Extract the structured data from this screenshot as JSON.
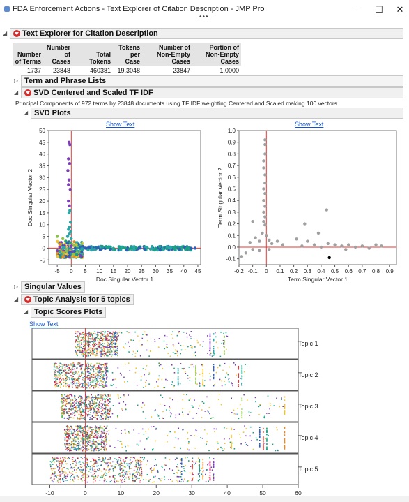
{
  "window": {
    "title": "FDA Enforcement Actions - Text Explorer of Citation Description - JMP Pro",
    "overflow_dots": "•••",
    "minimize": "—",
    "maximize": "☐",
    "close": "✕"
  },
  "text_explorer": {
    "header": "Text Explorer for Citation Description",
    "summary_headers": [
      "Number of Terms",
      "Number of Cases",
      "Total Tokens",
      "Tokens per Case",
      "Number of Non-Empty Cases",
      "Portion of Non-Empty Cases"
    ],
    "summary_values": [
      "1737",
      "23848",
      "460381",
      "19.3048",
      "23847",
      "1.0000"
    ]
  },
  "term_phrase": {
    "header": "Term and Phrase Lists"
  },
  "svd": {
    "header": "SVD Centered and Scaled TF IDF",
    "note": "Principal Components of 972 terms by 23848 documents using TF IDF weighting Centered and Scaled making 100 vectors",
    "plots_header": "SVD Plots",
    "show_text": "Show Text"
  },
  "singular_values": {
    "header": "Singular Values"
  },
  "topic_analysis": {
    "header": "Topic Analysis for 5 topics",
    "scores_header": "Topic Scores Plots",
    "show_text": "Show Text",
    "topics": [
      "Topic 1",
      "Topic 2",
      "Topic 3",
      "Topic 4",
      "Topic 5"
    ],
    "x_ticks": [
      "-10",
      "0",
      "10",
      "20",
      "30",
      "40",
      "50",
      "60"
    ]
  },
  "chart_data": [
    {
      "type": "scatter",
      "title": "",
      "xlabel": "Doc Singular Vector 1",
      "ylabel": "Doc Singular Vector 2",
      "xlim": [
        -8,
        46
      ],
      "ylim": [
        -7,
        50
      ],
      "x_ticks": [
        -5,
        0,
        5,
        10,
        15,
        20,
        25,
        30,
        35,
        40,
        45
      ],
      "y_ticks": [
        -5,
        0,
        5,
        10,
        15,
        20,
        25,
        30,
        35,
        40,
        45,
        50
      ],
      "series": [
        {
          "color": "#7b3fb5",
          "points": [
            [
              -0.8,
              45
            ],
            [
              -0.5,
              44
            ],
            [
              -1,
              38
            ],
            [
              -0.6,
              36
            ],
            [
              -1.2,
              33
            ],
            [
              -0.8,
              29
            ],
            [
              -1,
              27
            ],
            [
              -0.4,
              25
            ],
            [
              -1,
              20
            ],
            [
              -0.7,
              18
            ]
          ]
        },
        {
          "color": "#2aa6a6",
          "points": [
            [
              -0.5,
              16
            ],
            [
              -0.8,
              15
            ],
            [
              -0.3,
              11
            ],
            [
              -0.6,
              9
            ],
            [
              -1,
              8
            ],
            [
              -0.2,
              7
            ],
            [
              -0.7,
              6
            ],
            [
              -1.3,
              5
            ],
            [
              0,
              4
            ]
          ]
        },
        {
          "color": "#8bc34a",
          "points": [
            [
              -5,
              5
            ],
            [
              -3,
              4
            ],
            [
              -2,
              3
            ],
            [
              -4,
              2
            ],
            [
              -1,
              1
            ],
            [
              0.5,
              1.5
            ],
            [
              1.5,
              0.8
            ],
            [
              -3,
              -2
            ],
            [
              -2,
              -4
            ],
            [
              0,
              -4
            ],
            [
              1,
              -3
            ]
          ]
        },
        {
          "color": "#f2c230",
          "points": [
            [
              -3,
              1
            ],
            [
              -1.5,
              0.5
            ],
            [
              0,
              -1
            ],
            [
              1,
              1
            ],
            [
              2,
              0.5
            ],
            [
              -2,
              -1
            ],
            [
              -0.5,
              -3
            ],
            [
              3,
              0.2
            ]
          ]
        },
        {
          "color": "#2f5fb3",
          "points": [
            [
              2,
              0
            ],
            [
              5,
              0
            ],
            [
              8,
              0.2
            ],
            [
              11,
              0
            ],
            [
              14,
              -0.2
            ],
            [
              17,
              0
            ],
            [
              20,
              0.1
            ],
            [
              23,
              0
            ],
            [
              26,
              -0.1
            ],
            [
              29,
              0
            ],
            [
              32,
              0.1
            ],
            [
              35,
              0
            ],
            [
              38,
              -0.1
            ],
            [
              41,
              0
            ],
            [
              44,
              0
            ]
          ]
        },
        {
          "color": "#1aa084",
          "points": [
            [
              3,
              0.3
            ],
            [
              6,
              -0.2
            ],
            [
              9,
              0.1
            ],
            [
              12,
              0.2
            ],
            [
              15,
              -0.1
            ],
            [
              18,
              0.2
            ],
            [
              21,
              -0.2
            ],
            [
              24,
              0.1
            ],
            [
              27,
              0.2
            ],
            [
              30,
              -0.1
            ],
            [
              33,
              0.1
            ],
            [
              36,
              0.2
            ],
            [
              39,
              -0.1
            ],
            [
              42,
              0.1
            ]
          ]
        }
      ]
    },
    {
      "type": "scatter",
      "title": "",
      "xlabel": "Term Singular Vector 1",
      "ylabel": "Term Singular Vector 2",
      "xlim": [
        -0.2,
        0.95
      ],
      "ylim": [
        -0.15,
        1.0
      ],
      "x_ticks": [
        -0.2,
        -0.1,
        0.0,
        0.1,
        0.2,
        0.3,
        0.4,
        0.5,
        0.6,
        0.7,
        0.8,
        0.9
      ],
      "y_ticks": [
        -0.1,
        0.0,
        0.1,
        0.2,
        0.3,
        0.4,
        0.5,
        0.6,
        0.7,
        0.8,
        0.9,
        1.0
      ],
      "series": [
        {
          "color": "#a0a0a0",
          "points": [
            [
              -0.01,
              0.92
            ],
            [
              -0.01,
              0.88
            ],
            [
              -0.01,
              0.8
            ],
            [
              -0.02,
              0.74
            ],
            [
              -0.02,
              0.68
            ],
            [
              -0.01,
              0.62
            ],
            [
              -0.01,
              0.55
            ],
            [
              -0.02,
              0.5
            ],
            [
              -0.01,
              0.46
            ],
            [
              -0.02,
              0.4
            ],
            [
              -0.01,
              0.35
            ],
            [
              -0.02,
              0.3
            ],
            [
              -0.01,
              0.26
            ],
            [
              -0.02,
              0.22
            ],
            [
              -0.01,
              0.19
            ],
            [
              -0.1,
              0.22
            ],
            [
              -0.08,
              0.08
            ],
            [
              -0.05,
              0.05
            ],
            [
              -0.03,
              0.12
            ],
            [
              0.0,
              0.1
            ],
            [
              0.02,
              0.06
            ],
            [
              0.04,
              0.03
            ],
            [
              -0.12,
              0.04
            ],
            [
              -0.15,
              -0.05
            ],
            [
              -0.18,
              -0.08
            ],
            [
              -0.1,
              -0.02
            ],
            [
              -0.05,
              -0.03
            ],
            [
              0.02,
              -0.02
            ],
            [
              0.08,
              0.05
            ],
            [
              0.12,
              0.02
            ],
            [
              0.22,
              0.07
            ],
            [
              0.3,
              0.05
            ],
            [
              0.26,
              0.01
            ],
            [
              0.35,
              0.02
            ],
            [
              0.4,
              0.0
            ],
            [
              0.45,
              0.03
            ],
            [
              0.55,
              0.01
            ],
            [
              0.6,
              0.02
            ],
            [
              0.65,
              0.0
            ],
            [
              0.7,
              0.01
            ],
            [
              0.75,
              -0.01
            ],
            [
              0.8,
              0.02
            ],
            [
              0.84,
              0.01
            ],
            [
              0.38,
              0.12
            ],
            [
              0.28,
              0.2
            ],
            [
              0.44,
              0.32
            ],
            [
              0.5,
              0.02
            ],
            [
              0.58,
              -0.02
            ]
          ]
        },
        {
          "color": "#000000",
          "points": [
            [
              0.46,
              -0.09
            ]
          ]
        }
      ]
    },
    {
      "type": "scatter",
      "title": "",
      "xlabel": "",
      "ylabel": "",
      "xlim": [
        -15,
        60
      ],
      "categories": [
        "Topic 1",
        "Topic 2",
        "Topic 3",
        "Topic 4",
        "Topic 5"
      ],
      "series": [
        {
          "name": "Topic 1",
          "range": [
            -3,
            40
          ],
          "dense_range": [
            -3,
            9
          ],
          "vertical_stripes": [
            35,
            36,
            39
          ]
        },
        {
          "name": "Topic 2",
          "range": [
            -9,
            45
          ],
          "dense_range": [
            -9,
            6
          ],
          "vertical_stripes": [
            26,
            31,
            33,
            36,
            43,
            44
          ]
        },
        {
          "name": "Topic 3",
          "range": [
            -7,
            56
          ],
          "dense_range": [
            -7,
            7
          ],
          "vertical_stripes": [
            44,
            56
          ]
        },
        {
          "name": "Topic 4",
          "range": [
            -6,
            56
          ],
          "dense_range": [
            -6,
            6
          ],
          "vertical_stripes": [
            41,
            49,
            50,
            51,
            56
          ]
        },
        {
          "name": "Topic 5",
          "range": [
            -10,
            36
          ],
          "dense_range": [
            -10,
            16
          ],
          "vertical_stripes": [
            27,
            30,
            32,
            33,
            35,
            36
          ]
        }
      ]
    }
  ]
}
